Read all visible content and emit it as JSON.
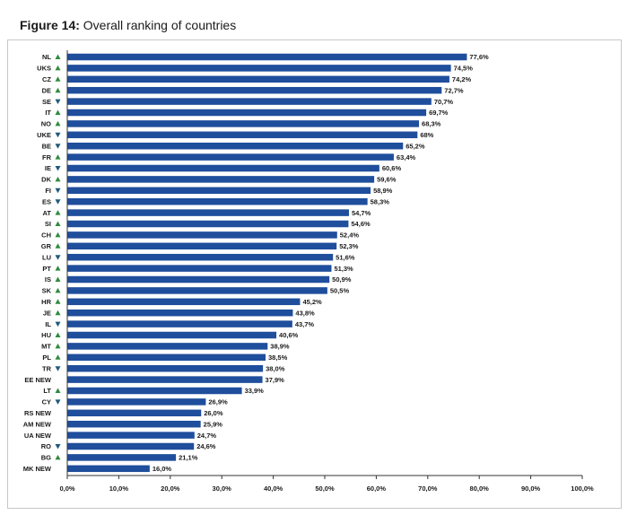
{
  "figure": {
    "label": "Figure 14:",
    "caption": " Overall ranking of countries"
  },
  "colors": {
    "bar": "#1f4e9c",
    "arrow_up": "#2e8b3d",
    "arrow_down": "#1f5a7a",
    "axis": "#333333"
  },
  "chart_data": {
    "type": "bar",
    "orientation": "horizontal",
    "xlim": [
      0,
      100
    ],
    "grid": false,
    "categories": [
      "NL",
      "UKS",
      "CZ",
      "DE",
      "SE",
      "IT",
      "NO",
      "UKE",
      "BE",
      "FR",
      "IE",
      "DK",
      "FI",
      "ES",
      "AT",
      "SI",
      "CH",
      "GR",
      "LU",
      "PT",
      "IS",
      "SK",
      "HR",
      "JE",
      "IL",
      "HU",
      "MT",
      "PL",
      "TR",
      "EE NEW",
      "LT",
      "CY",
      "RS NEW",
      "AM NEW",
      "UA NEW",
      "RO",
      "BG",
      "MK NEW"
    ],
    "values": [
      77.6,
      74.5,
      74.2,
      72.7,
      70.7,
      69.7,
      68.3,
      68,
      65.2,
      63.4,
      60.6,
      59.6,
      58.9,
      58.3,
      54.7,
      54.6,
      52.4,
      52.3,
      51.6,
      51.3,
      50.9,
      50.5,
      45.2,
      43.8,
      43.7,
      40.6,
      38.9,
      38.5,
      38.0,
      37.9,
      33.9,
      26.9,
      26.0,
      25.9,
      24.7,
      24.6,
      21.1,
      16.0
    ],
    "value_labels": [
      "77,6%",
      "74,5%",
      "74,2%",
      "72,7%",
      "70,7%",
      "69,7%",
      "68,3%",
      "68%",
      "65,2%",
      "63,4%",
      "60,6%",
      "59,6%",
      "58,9%",
      "58,3%",
      "54,7%",
      "54,6%",
      "52,4%",
      "52,3%",
      "51,6%",
      "51,3%",
      "50,9%",
      "50,5%",
      "45,2%",
      "43,8%",
      "43,7%",
      "40,6%",
      "38,9%",
      "38,5%",
      "38,0%",
      "37,9%",
      "33,9%",
      "26,9%",
      "26,0%",
      "25,9%",
      "24,7%",
      "24,6%",
      "21,1%",
      "16,0%"
    ],
    "trend": [
      "up",
      "up",
      "up",
      "up",
      "down",
      "up",
      "up",
      "down",
      "down",
      "up",
      "down",
      "up",
      "down",
      "down",
      "up",
      "up",
      "up",
      "up",
      "down",
      "up",
      "up",
      "up",
      "up",
      "up",
      "down",
      "up",
      "up",
      "up",
      "down",
      "",
      "up",
      "down",
      "",
      "",
      "",
      "down",
      "up",
      ""
    ],
    "x_ticks": [
      "0,0%",
      "10,0%",
      "20,0%",
      "30,0%",
      "40,0%",
      "50,0%",
      "60,0%",
      "70,0%",
      "80,0%",
      "90,0%",
      "100,0%"
    ]
  }
}
